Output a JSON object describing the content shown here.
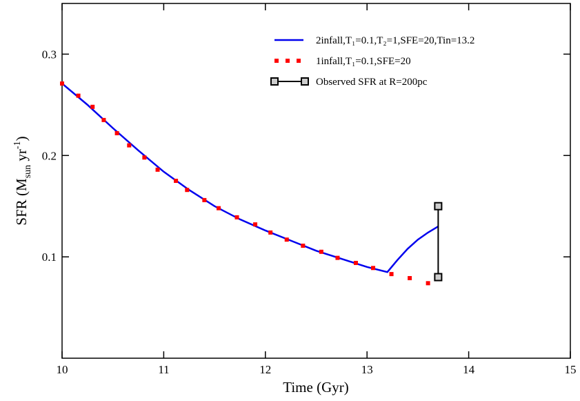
{
  "chart_data": {
    "type": "line",
    "x_label": "Time  (Gyr)",
    "y_label": [
      "SFR  (M",
      "sun",
      " yr",
      "-1",
      ")"
    ],
    "xlim": [
      10,
      15
    ],
    "ylim": [
      0,
      0.35
    ],
    "xticks": [
      10,
      11,
      12,
      13,
      14,
      15
    ],
    "yticks": [
      0.1,
      0.2,
      0.3
    ],
    "series": [
      {
        "name": "2infall,T₁=0.1,T₂=1,SFE=20,Tin=13.2",
        "color": "#0000ee",
        "style": "solid",
        "x": [
          10,
          10.25,
          10.5,
          10.75,
          11,
          11.25,
          11.5,
          11.75,
          12,
          12.25,
          12.5,
          12.75,
          13,
          13.2,
          13.3,
          13.4,
          13.5,
          13.6,
          13.7
        ],
        "values": [
          0.271,
          0.25,
          0.227,
          0.205,
          0.184,
          0.166,
          0.15,
          0.137,
          0.126,
          0.116,
          0.106,
          0.098,
          0.09,
          0.085,
          0.097,
          0.108,
          0.117,
          0.124,
          0.13
        ]
      },
      {
        "name": "1infall,T₁=0.1,SFE=20",
        "color": "#ff0000",
        "style": "dotted",
        "x": [
          10,
          10.16,
          10.3,
          10.41,
          10.54,
          10.66,
          10.81,
          10.94,
          11.12,
          11.23,
          11.4,
          11.54,
          11.72,
          11.9,
          12.05,
          12.21,
          12.37,
          12.55,
          12.71,
          12.89,
          13.06,
          13.24,
          13.42,
          13.6
        ],
        "values": [
          0.271,
          0.259,
          0.248,
          0.235,
          0.222,
          0.21,
          0.198,
          0.186,
          0.175,
          0.166,
          0.156,
          0.148,
          0.139,
          0.132,
          0.124,
          0.117,
          0.111,
          0.105,
          0.099,
          0.094,
          0.089,
          0.083,
          0.079,
          0.074
        ]
      },
      {
        "name": "Observed SFR at R=200pc",
        "color": "#000000",
        "marker_fill": "#cccccc",
        "style": "errorbar",
        "x": [
          13.7,
          13.7
        ],
        "values": [
          0.15,
          0.08
        ]
      }
    ]
  }
}
